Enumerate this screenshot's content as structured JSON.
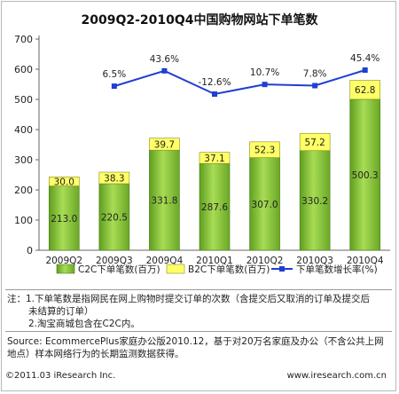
{
  "chart_data": {
    "type": "bar",
    "title": "2009Q2-2010Q4中国购物网站下单笔数",
    "categories": [
      "2009Q2",
      "2009Q3",
      "2009Q4",
      "2010Q1",
      "2010Q2",
      "2010Q3",
      "2010Q4"
    ],
    "series": [
      {
        "name": "C2C下单笔数(百万)",
        "values": [
          213.0,
          220.5,
          331.8,
          287.6,
          307.0,
          330.2,
          500.3
        ],
        "color": "#8cc63f"
      },
      {
        "name": "B2C下单笔数(百万)",
        "values": [
          30.0,
          38.3,
          39.7,
          37.1,
          52.3,
          57.2,
          62.8
        ],
        "color": "#ffff66"
      },
      {
        "name": "下单笔数增长率(%)",
        "values": [
          null,
          6.5,
          43.6,
          -12.6,
          10.7,
          7.8,
          45.4
        ],
        "color": "#1f3fd1"
      }
    ],
    "data_labels": {
      "c2c": [
        "213.0",
        "220.5",
        "331.8",
        "287.6",
        "307.0",
        "330.2",
        "500.3"
      ],
      "b2c": [
        "30.0",
        "38.3",
        "39.7",
        "37.1",
        "52.3",
        "57.2",
        "62.8"
      ],
      "growth": [
        "",
        "6.5%",
        "43.6%",
        "-12.6%",
        "10.7%",
        "7.8%",
        "45.4%"
      ]
    },
    "yticks": [
      "0",
      "100",
      "200",
      "300",
      "400",
      "500",
      "600",
      "700"
    ],
    "ylim": [
      0,
      700
    ],
    "stacked": true,
    "legend_position": "bottom",
    "grid": false
  },
  "notes": {
    "line1": "注：1.下单笔数是指网民在网上购物时提交订单的次数（含提交后又取消的订单及提交后",
    "line2": "未结算的订单）",
    "line3": "2.淘宝商城包含在C2C内。"
  },
  "source": {
    "line1": "Source: EcommercePlus家庭办公版2010.12，基于对20万名家庭及办公（不含公共上网",
    "line2": "地点）样本网络行为的长期监测数据获得。"
  },
  "footer": {
    "copyright": "©2011.03 iResearch Inc.",
    "website": "www.iresearch.com.cn"
  }
}
